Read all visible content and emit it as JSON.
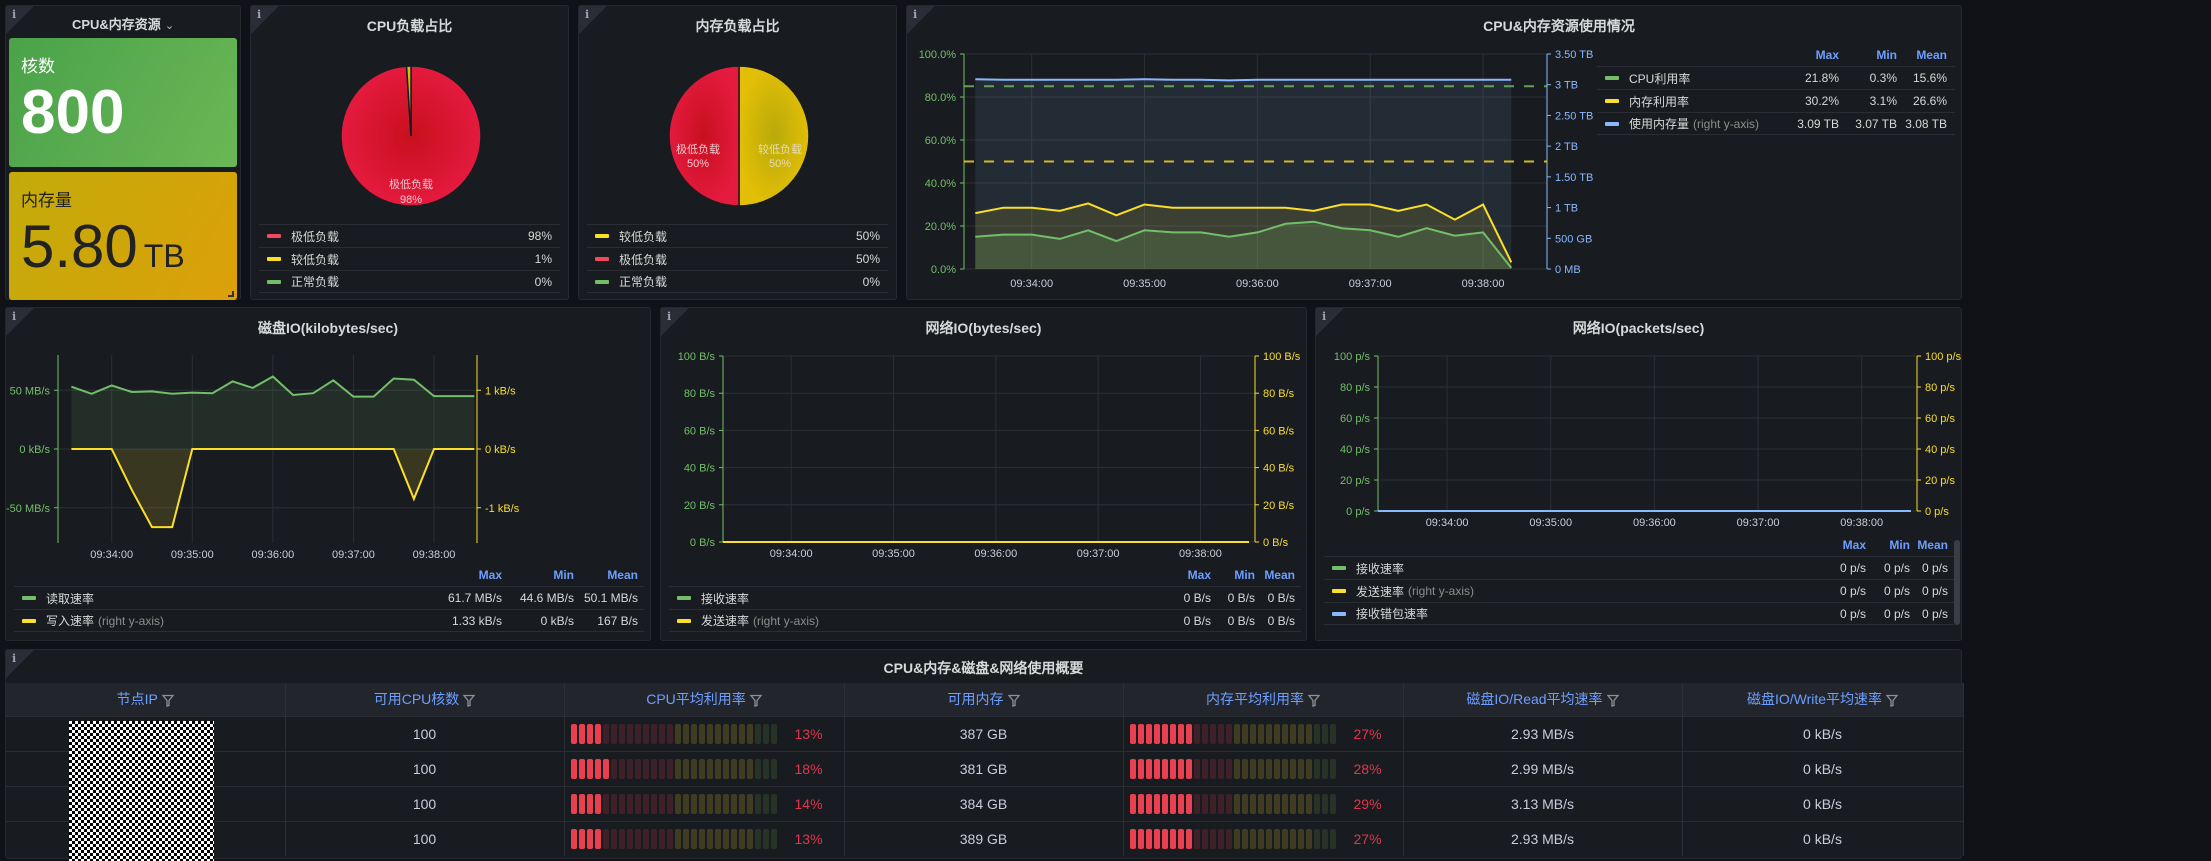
{
  "stat_panel": {
    "title": "CPU&内存资源",
    "cores_label": "核数",
    "cores_value": "800",
    "memory_label": "内存量",
    "memory_value": "5.80",
    "memory_unit": "TB",
    "colors": {
      "green": "#56a64b",
      "yellow": "#d2a40a"
    }
  },
  "cpu_pie": {
    "title": "CPU负载占比",
    "slice_label": "极低负载",
    "slice_pct": "98%",
    "legend": [
      {
        "label": "极低负载",
        "value": "98%",
        "color": "#f2495c"
      },
      {
        "label": "较低负载",
        "value": "1%",
        "color": "#fade2a"
      },
      {
        "label": "正常负载",
        "value": "0%",
        "color": "#73bf69"
      }
    ],
    "chart_data": {
      "type": "pie",
      "labels": [
        "极低负载",
        "较低负载",
        "正常负载"
      ],
      "values": [
        98,
        1,
        0
      ]
    }
  },
  "mem_pie": {
    "title": "内存负载占比",
    "slices": [
      {
        "label": "极低负载",
        "pct": "50%"
      },
      {
        "label": "较低负载",
        "pct": "50%"
      }
    ],
    "legend": [
      {
        "label": "较低负载",
        "value": "50%",
        "color": "#fade2a"
      },
      {
        "label": "极低负载",
        "value": "50%",
        "color": "#f2495c"
      },
      {
        "label": "正常负载",
        "value": "0%",
        "color": "#73bf69"
      }
    ],
    "chart_data": {
      "type": "pie",
      "labels": [
        "较低负载",
        "极低负载",
        "正常负载"
      ],
      "values": [
        50,
        50,
        0
      ]
    }
  },
  "usage_chart": {
    "title": "CPU&内存资源使用情况",
    "legend_headers": [
      "Max",
      "Min",
      "Mean"
    ],
    "legend": [
      {
        "name": "CPU利用率",
        "note": "",
        "color": "#73bf69",
        "max": "21.8%",
        "min": "0.3%",
        "mean": "15.6%"
      },
      {
        "name": "内存利用率",
        "note": "",
        "color": "#fade2a",
        "max": "30.2%",
        "min": "3.1%",
        "mean": "26.6%"
      },
      {
        "name": "使用内存量",
        "note": "(right y-axis)",
        "color": "#8ab8ff",
        "max": "3.09 TB",
        "min": "3.07 TB",
        "mean": "3.08 TB"
      }
    ],
    "left_ticks": [
      "0.0%",
      "20.0%",
      "40.0%",
      "60.0%",
      "80.0%",
      "100.0%"
    ],
    "right_ticks": [
      "0 MB",
      "500 GB",
      "1 TB",
      "1.50 TB",
      "2 TB",
      "2.50 TB",
      "3 TB",
      "3.50 TB"
    ],
    "x_ticks": [
      "09:34:00",
      "09:35:00",
      "09:36:00",
      "09:37:00",
      "09:38:00"
    ]
  },
  "disk_chart": {
    "title": "磁盘IO(kilobytes/sec)",
    "left_ticks": [
      "-50 MB/s",
      "0 kB/s",
      "50 MB/s"
    ],
    "right_ticks": [
      "-1 kB/s",
      "0 kB/s",
      "1 kB/s"
    ],
    "x_ticks": [
      "09:34:00",
      "09:35:00",
      "09:36:00",
      "09:37:00",
      "09:38:00"
    ],
    "legend_headers": [
      "Max",
      "Min",
      "Mean"
    ],
    "legend": [
      {
        "name": "读取速率",
        "note": "",
        "color": "#73bf69",
        "max": "61.7 MB/s",
        "min": "44.6 MB/s",
        "mean": "50.1 MB/s"
      },
      {
        "name": "写入速率",
        "note": "(right y-axis)",
        "color": "#fade2a",
        "max": "1.33 kB/s",
        "min": "0 kB/s",
        "mean": "167 B/s"
      }
    ]
  },
  "net_bytes_chart": {
    "title": "网络IO(bytes/sec)",
    "left_ticks": [
      "0 B/s",
      "20 B/s",
      "40 B/s",
      "60 B/s",
      "80 B/s",
      "100 B/s"
    ],
    "right_ticks": [
      "0 B/s",
      "20 B/s",
      "40 B/s",
      "60 B/s",
      "80 B/s",
      "100 B/s"
    ],
    "x_ticks": [
      "09:34:00",
      "09:35:00",
      "09:36:00",
      "09:37:00",
      "09:38:00"
    ],
    "legend_headers": [
      "Max",
      "Min",
      "Mean"
    ],
    "legend": [
      {
        "name": "接收速率",
        "note": "",
        "color": "#73bf69",
        "max": "0 B/s",
        "min": "0 B/s",
        "mean": "0 B/s"
      },
      {
        "name": "发送速率",
        "note": "(right y-axis)",
        "color": "#fade2a",
        "max": "0 B/s",
        "min": "0 B/s",
        "mean": "0 B/s"
      }
    ]
  },
  "net_packets_chart": {
    "title": "网络IO(packets/sec)",
    "left_ticks": [
      "0 p/s",
      "20 p/s",
      "40 p/s",
      "60 p/s",
      "80 p/s",
      "100 p/s"
    ],
    "right_ticks": [
      "0 p/s",
      "20 p/s",
      "40 p/s",
      "60 p/s",
      "80 p/s",
      "100 p/s"
    ],
    "x_ticks": [
      "09:34:00",
      "09:35:00",
      "09:36:00",
      "09:37:00",
      "09:38:00"
    ],
    "legend_headers": [
      "Max",
      "Min",
      "Mean"
    ],
    "legend": [
      {
        "name": "接收速率",
        "note": "",
        "color": "#73bf69",
        "max": "0 p/s",
        "min": "0 p/s",
        "mean": "0 p/s"
      },
      {
        "name": "发送速率",
        "note": "(right y-axis)",
        "color": "#fade2a",
        "max": "0 p/s",
        "min": "0 p/s",
        "mean": "0 p/s"
      },
      {
        "name": "接收错包速率",
        "note": "",
        "color": "#8ab8ff",
        "max": "0 p/s",
        "min": "0 p/s",
        "mean": "0 p/s"
      }
    ]
  },
  "overview_table": {
    "title": "CPU&内存&磁盘&网络使用概要",
    "columns": [
      "节点IP",
      "可用CPU核数",
      "CPU平均利用率",
      "可用内存",
      "内存平均利用率",
      "磁盘IO/Read平均速率",
      "磁盘IO/Write平均速率"
    ],
    "rows": [
      {
        "cpu_cores": "100",
        "cpu_util": "13%",
        "cpu_util_value": 13,
        "mem": "387 GB",
        "mem_util": "27%",
        "mem_util_value": 27,
        "read": "2.93 MB/s",
        "write": "0 kB/s"
      },
      {
        "cpu_cores": "100",
        "cpu_util": "18%",
        "cpu_util_value": 18,
        "mem": "381 GB",
        "mem_util": "28%",
        "mem_util_value": 28,
        "read": "2.99 MB/s",
        "write": "0 kB/s"
      },
      {
        "cpu_cores": "100",
        "cpu_util": "14%",
        "cpu_util_value": 14,
        "mem": "384 GB",
        "mem_util": "29%",
        "mem_util_value": 29,
        "read": "3.13 MB/s",
        "write": "0 kB/s"
      },
      {
        "cpu_cores": "100",
        "cpu_util": "13%",
        "cpu_util_value": 13,
        "mem": "389 GB",
        "mem_util": "27%",
        "mem_util_value": 27,
        "read": "2.93 MB/s",
        "write": "0 kB/s"
      }
    ]
  },
  "chart_data": [
    {
      "type": "line",
      "title": "CPU&内存资源使用情况",
      "x": [
        "09:33:30",
        "09:33:45",
        "09:34:00",
        "09:34:15",
        "09:34:30",
        "09:34:45",
        "09:35:00",
        "09:35:15",
        "09:35:30",
        "09:35:45",
        "09:36:00",
        "09:36:15",
        "09:36:30",
        "09:36:45",
        "09:37:00",
        "09:37:15",
        "09:37:30",
        "09:37:45",
        "09:38:00",
        "09:38:15"
      ],
      "series": [
        {
          "name": "CPU利用率",
          "axis": "left",
          "unit": "%",
          "values": [
            15,
            16,
            16,
            14,
            18,
            13,
            18,
            17,
            17,
            15,
            17,
            21,
            22,
            19,
            18,
            15,
            19,
            15.5,
            17,
            0.5
          ]
        },
        {
          "name": "内存利用率",
          "axis": "left",
          "unit": "%",
          "values": [
            26,
            28.5,
            28.5,
            27,
            30.5,
            25,
            30,
            28.5,
            28.5,
            28.5,
            28.5,
            28.5,
            27,
            30,
            30,
            27,
            30,
            23,
            30,
            3.1
          ]
        },
        {
          "name": "使用内存量",
          "axis": "right",
          "unit": "TB",
          "values": [
            3.09,
            3.08,
            3.08,
            3.08,
            3.08,
            3.08,
            3.09,
            3.08,
            3.08,
            3.07,
            3.08,
            3.08,
            3.08,
            3.08,
            3.08,
            3.08,
            3.08,
            3.08,
            3.08,
            3.08
          ]
        }
      ],
      "thresholds": [
        {
          "value": 85,
          "color": "#73bf69"
        },
        {
          "value": 50,
          "color": "#fade2a"
        }
      ],
      "ylim": [
        0,
        100
      ],
      "y2lim": [
        0,
        3.5
      ]
    },
    {
      "type": "line",
      "title": "磁盘IO(kilobytes/sec)",
      "x": [
        "09:33:30",
        "09:33:45",
        "09:34:00",
        "09:34:15",
        "09:34:30",
        "09:34:45",
        "09:35:00",
        "09:35:15",
        "09:35:30",
        "09:35:45",
        "09:36:00",
        "09:36:15",
        "09:36:30",
        "09:36:45",
        "09:37:00",
        "09:37:15",
        "09:37:30",
        "09:37:45",
        "09:38:00",
        "09:38:15",
        "09:38:30"
      ],
      "series": [
        {
          "name": "读取速率",
          "axis": "left",
          "unit": "MB/s",
          "values": [
            53,
            47,
            54,
            48.5,
            49,
            47,
            48,
            47.5,
            57.5,
            52,
            61.7,
            46,
            47.5,
            58.5,
            44.6,
            44.6,
            60,
            59,
            45,
            45,
            45
          ]
        },
        {
          "name": "写入速率",
          "axis": "right",
          "unit": "kB/s",
          "values": [
            0,
            0,
            0,
            -0.7,
            -1.33,
            -1.33,
            0,
            0,
            0,
            0,
            0,
            0,
            0,
            0,
            0,
            0,
            0,
            -0.85,
            0,
            0,
            0
          ]
        }
      ],
      "ylim": [
        -80,
        80
      ],
      "y2lim": [
        -1.6,
        1.6
      ]
    },
    {
      "type": "line",
      "title": "网络IO(bytes/sec)",
      "x": [
        "09:33:30",
        "09:38:30"
      ],
      "series": [
        {
          "name": "接收速率",
          "axis": "left",
          "values": [
            0,
            0
          ]
        },
        {
          "name": "发送速率",
          "axis": "right",
          "values": [
            0,
            0
          ]
        }
      ],
      "ylim": [
        0,
        100
      ],
      "y2lim": [
        0,
        100
      ]
    },
    {
      "type": "line",
      "title": "网络IO(packets/sec)",
      "x": [
        "09:33:30",
        "09:38:30"
      ],
      "series": [
        {
          "name": "接收速率",
          "axis": "left",
          "values": [
            0,
            0
          ]
        },
        {
          "name": "发送速率",
          "axis": "right",
          "values": [
            0,
            0
          ]
        },
        {
          "name": "接收错包速率",
          "axis": "left",
          "values": [
            0,
            0
          ]
        }
      ],
      "ylim": [
        0,
        100
      ],
      "y2lim": [
        0,
        100
      ]
    }
  ]
}
